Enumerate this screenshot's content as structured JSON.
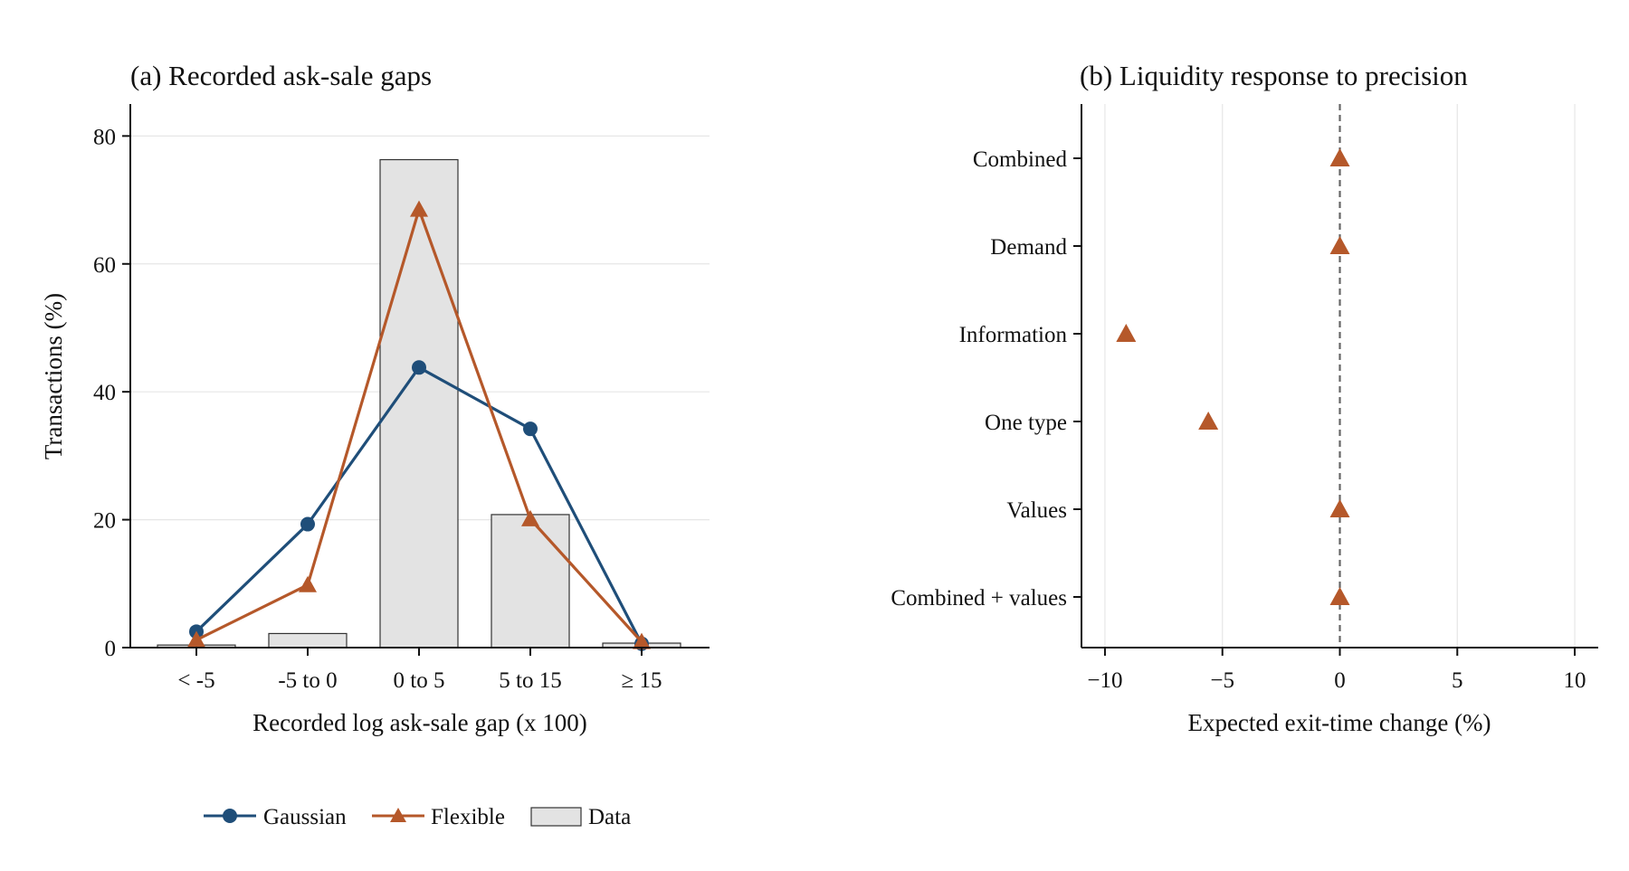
{
  "colors": {
    "gaussian": "#1f4e79",
    "flexible": "#b5582a",
    "data_fill": "#e3e3e3",
    "data_edge": "#333333",
    "zero_line": "#666666"
  },
  "chart_data": [
    {
      "type": "bar",
      "title": "(a) Recorded ask-sale gaps",
      "xlabel": "Recorded log ask-sale gap (x 100)",
      "ylabel": "Transactions (%)",
      "categories": [
        "< -5",
        "-5 to 0",
        "0 to 5",
        "5 to 15",
        "≥ 15"
      ],
      "ylim": [
        0,
        85
      ],
      "yticks": [
        0,
        20,
        40,
        60,
        80
      ],
      "grid": true,
      "bars": {
        "name": "Data",
        "values": [
          0.4,
          2.2,
          76.3,
          20.8,
          0.7
        ]
      },
      "series": [
        {
          "name": "Gaussian",
          "type": "line",
          "marker": "circle",
          "values": [
            2.5,
            19.3,
            43.8,
            34.2,
            0.6
          ]
        },
        {
          "name": "Flexible",
          "type": "line",
          "marker": "triangle",
          "values": [
            1.2,
            9.8,
            68.5,
            20.1,
            0.9
          ]
        }
      ]
    },
    {
      "type": "scatter",
      "title": "(b) Liquidity response to precision",
      "xlabel": "Expected exit-time change (%)",
      "ylabel": "",
      "categories": [
        "Combined",
        "Demand",
        "Information",
        "One type",
        "Values",
        "Combined + values"
      ],
      "xlim": [
        -11,
        11
      ],
      "xticks": [
        -10,
        -5,
        0,
        5,
        10
      ],
      "xtick_labels": [
        "−10",
        "−5",
        "0",
        "5",
        "10"
      ],
      "reference_line": 0,
      "grid": true,
      "series": [
        {
          "marker": "triangle",
          "values": [
            0.0,
            0.0,
            -9.1,
            -5.6,
            0.0,
            0.0
          ]
        }
      ]
    }
  ],
  "legend": {
    "placement": "bottom-center",
    "items": [
      {
        "label": "Gaussian",
        "kind": "line-circle"
      },
      {
        "label": "Flexible",
        "kind": "line-triangle"
      },
      {
        "label": "Data",
        "kind": "box"
      }
    ]
  }
}
